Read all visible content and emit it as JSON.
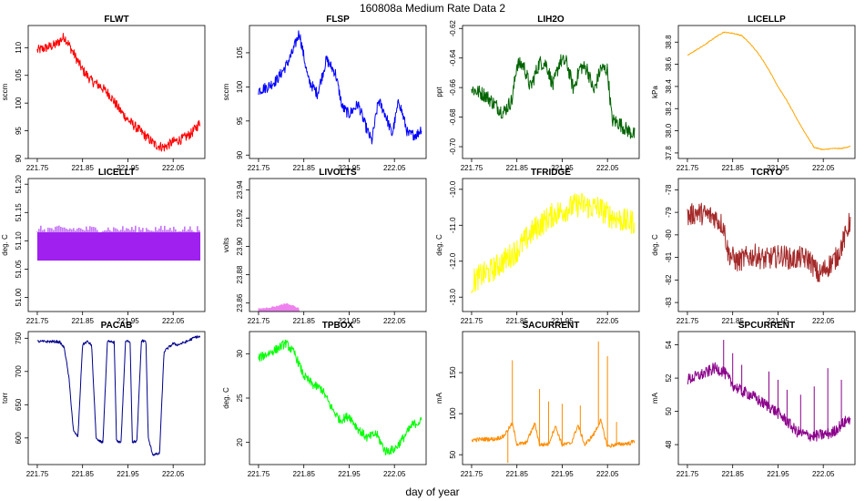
{
  "figure": {
    "title": "160808a   Medium Rate Data 2",
    "xlabel": "day of year"
  },
  "chart_data": [
    {
      "type": "line",
      "title": "FLWT",
      "ylabel": "sccm",
      "color": "#ff0000",
      "xlim": [
        221.73,
        222.12
      ],
      "ylim": [
        90,
        114
      ],
      "xticks": [
        221.75,
        221.85,
        221.95,
        222.05
      ],
      "xtick_labels": [
        "221.75",
        "221.85",
        "221.95",
        "222.05"
      ],
      "yticks": [
        90,
        95,
        100,
        105,
        110
      ],
      "ytick_labels": [
        "90",
        "95",
        "100",
        "105",
        "110"
      ],
      "x": [
        221.75,
        221.77,
        221.79,
        221.81,
        221.83,
        221.85,
        221.87,
        221.89,
        221.91,
        221.93,
        221.95,
        221.97,
        221.99,
        222.01,
        222.03,
        222.05,
        222.07,
        222.09,
        222.11
      ],
      "y": [
        109.5,
        110,
        110.5,
        112,
        109,
        106,
        104,
        103,
        101.5,
        99,
        97,
        95.5,
        94,
        92.5,
        92,
        93,
        93.5,
        94.5,
        96.5
      ],
      "noise": 0.9
    },
    {
      "type": "line",
      "title": "FLSP",
      "ylabel": "sccm",
      "color": "#0000ff",
      "xlim": [
        221.73,
        222.12
      ],
      "ylim": [
        89.5,
        109
      ],
      "xticks": [
        221.75,
        221.85,
        221.95,
        222.05
      ],
      "xtick_labels": [
        "221.75",
        "221.85",
        "221.95",
        "222.05"
      ],
      "yticks": [
        90,
        95,
        100,
        105
      ],
      "ytick_labels": [
        "90",
        "95",
        "100",
        "105"
      ],
      "x": [
        221.75,
        221.77,
        221.79,
        221.81,
        221.825,
        221.84,
        221.86,
        221.88,
        221.9,
        221.92,
        221.935,
        221.95,
        221.97,
        221.985,
        222.0,
        222.015,
        222.03,
        222.045,
        222.06,
        222.08,
        222.1,
        222.11
      ],
      "y": [
        99.5,
        100,
        101,
        103,
        105,
        108,
        101,
        99,
        104,
        102,
        97,
        96,
        97.5,
        94.5,
        92,
        98,
        96,
        93,
        98,
        93,
        93,
        94
      ],
      "noise": 0.8
    },
    {
      "type": "line",
      "title": "LIH2O",
      "ylabel": "ppt",
      "color": "#006400",
      "xlim": [
        221.73,
        222.12
      ],
      "ylim": [
        -0.708,
        -0.618
      ],
      "xticks": [
        221.75,
        221.85,
        221.95,
        222.05
      ],
      "xtick_labels": [
        "221.75",
        "221.85",
        "221.95",
        "222.05"
      ],
      "yticks": [
        -0.7,
        -0.68,
        -0.66,
        -0.64,
        -0.62
      ],
      "ytick_labels": [
        "-0.70",
        "-0.68",
        "-0.66",
        "-0.64",
        "-0.62"
      ],
      "x": [
        221.75,
        221.78,
        221.8,
        221.82,
        221.84,
        221.85,
        221.865,
        221.88,
        221.9,
        221.915,
        221.93,
        221.945,
        221.96,
        221.975,
        221.99,
        222.005,
        222.02,
        222.035,
        222.05,
        222.06,
        222.075,
        222.09,
        222.11
      ],
      "y": [
        -0.661,
        -0.665,
        -0.671,
        -0.677,
        -0.668,
        -0.644,
        -0.645,
        -0.66,
        -0.643,
        -0.644,
        -0.659,
        -0.642,
        -0.643,
        -0.661,
        -0.646,
        -0.647,
        -0.663,
        -0.647,
        -0.648,
        -0.682,
        -0.684,
        -0.688,
        -0.692
      ],
      "noise": 0.005
    },
    {
      "type": "line",
      "title": "LICELLP",
      "ylabel": "kPa",
      "color": "#ffa500",
      "xlim": [
        221.73,
        222.12
      ],
      "ylim": [
        37.75,
        38.95
      ],
      "xticks": [
        221.75,
        221.85,
        221.95,
        222.05
      ],
      "xtick_labels": [
        "221.75",
        "221.85",
        "221.95",
        "222.05"
      ],
      "yticks": [
        37.8,
        38.0,
        38.2,
        38.4,
        38.6,
        38.8
      ],
      "ytick_labels": [
        "37.8",
        "38.0",
        "38.2",
        "38.4",
        "38.6",
        "38.8"
      ],
      "x": [
        221.75,
        221.77,
        221.79,
        221.81,
        221.83,
        221.85,
        221.87,
        221.89,
        221.91,
        221.93,
        221.95,
        221.97,
        221.99,
        222.01,
        222.03,
        222.05,
        222.07,
        222.09,
        222.11
      ],
      "y": [
        38.68,
        38.73,
        38.78,
        38.84,
        38.89,
        38.88,
        38.86,
        38.78,
        38.68,
        38.55,
        38.4,
        38.27,
        38.12,
        37.98,
        37.85,
        37.83,
        37.84,
        37.84,
        37.86
      ],
      "noise": 0.004
    },
    {
      "type": "line",
      "title": "LICELLT",
      "ylabel": "deg. C",
      "color": "#a020f0",
      "xlim": [
        221.73,
        222.12
      ],
      "ylim": [
        50.975,
        51.21
      ],
      "xticks": [
        221.75,
        221.85,
        221.95,
        222.05
      ],
      "xtick_labels": [
        "221.75",
        "221.85",
        "221.95",
        "222.05"
      ],
      "yticks": [
        51.0,
        51.05,
        51.1,
        51.15,
        51.2
      ],
      "ytick_labels": [
        "51.00",
        "51.05",
        "51.10",
        "51.15",
        "51.20"
      ],
      "x": [
        221.75,
        222.11
      ],
      "y": [
        51.085,
        51.085
      ],
      "band": [
        51.065,
        51.115
      ]
    },
    {
      "type": "line",
      "title": "LIVOLTS",
      "ylabel": "volts",
      "color": "#ee82ee",
      "xlim": [
        221.73,
        222.12
      ],
      "ylim": [
        23.854,
        23.948
      ],
      "xticks": [
        221.75,
        221.85,
        221.95,
        222.05
      ],
      "xtick_labels": [
        "221.75",
        "221.85",
        "221.95",
        "222.05"
      ],
      "yticks": [
        23.86,
        23.88,
        23.9,
        23.92,
        23.94
      ],
      "ytick_labels": [
        "23.86",
        "23.88",
        "23.90",
        "23.92",
        "23.94"
      ],
      "x": [
        221.75,
        221.77,
        221.79,
        221.81,
        221.83,
        221.84
      ],
      "y": [
        23.855,
        23.856,
        23.857,
        23.859,
        23.857,
        23.855
      ],
      "band": [
        23.854,
        23.859
      ]
    },
    {
      "type": "line",
      "title": "TFRIDGE",
      "ylabel": "deg. C",
      "color": "#ffff00",
      "xlim": [
        221.73,
        222.12
      ],
      "ylim": [
        -13.4,
        -9.7
      ],
      "xticks": [
        221.75,
        221.85,
        221.95,
        222.05
      ],
      "xtick_labels": [
        "221.75",
        "221.85",
        "221.95",
        "222.05"
      ],
      "yticks": [
        -13,
        -12,
        -11,
        -10
      ],
      "ytick_labels": [
        "-13.0",
        "-12.0",
        "-11.0",
        "-10.0"
      ],
      "x": [
        221.75,
        221.77,
        221.79,
        221.81,
        221.83,
        221.85,
        221.87,
        221.89,
        221.91,
        221.93,
        221.95,
        221.97,
        221.99,
        222.01,
        222.03,
        222.05,
        222.07,
        222.09,
        222.11
      ],
      "y": [
        -12.6,
        -12.4,
        -12.3,
        -12.1,
        -11.9,
        -11.7,
        -11.4,
        -11.1,
        -10.9,
        -10.7,
        -10.6,
        -10.5,
        -10.4,
        -10.5,
        -10.5,
        -10.7,
        -10.8,
        -10.9,
        -10.9
      ],
      "noise": 0.35
    },
    {
      "type": "line",
      "title": "TCRYO",
      "ylabel": "deg. C",
      "color": "#a52a2a",
      "xlim": [
        221.73,
        222.12
      ],
      "ylim": [
        -83.4,
        -77.5
      ],
      "xticks": [
        221.75,
        221.85,
        221.95,
        222.05
      ],
      "xtick_labels": [
        "221.75",
        "221.85",
        "221.95",
        "222.05"
      ],
      "yticks": [
        -83,
        -82,
        -81,
        -80,
        -79,
        -78
      ],
      "ytick_labels": [
        "-83",
        "-82",
        "-81",
        "-80",
        "-79",
        "-78"
      ],
      "x": [
        221.75,
        221.77,
        221.79,
        221.81,
        221.83,
        221.84,
        221.86,
        221.88,
        221.9,
        221.92,
        221.94,
        221.96,
        221.98,
        222.0,
        222.02,
        222.04,
        222.06,
        222.08,
        222.1,
        222.11
      ],
      "y": [
        -79.2,
        -79.0,
        -79.1,
        -79.2,
        -79.6,
        -80.8,
        -81.2,
        -81.0,
        -80.9,
        -81.1,
        -81.0,
        -80.9,
        -81.1,
        -81.0,
        -81.1,
        -81.8,
        -81.4,
        -81.0,
        -80.0,
        -79.3
      ],
      "noise": 0.5
    },
    {
      "type": "line",
      "title": "PACAB",
      "ylabel": "torr",
      "color": "#00008b",
      "xlim": [
        221.73,
        222.12
      ],
      "ylim": [
        560,
        760
      ],
      "xticks": [
        221.75,
        221.85,
        221.95,
        222.05
      ],
      "xtick_labels": [
        "221.75",
        "221.85",
        "221.95",
        "222.05"
      ],
      "yticks": [
        600,
        650,
        700,
        750
      ],
      "ytick_labels": [
        "600",
        "650",
        "700",
        "750"
      ],
      "x": [
        221.75,
        221.79,
        221.8,
        221.81,
        221.82,
        221.83,
        221.84,
        221.85,
        221.86,
        221.87,
        221.88,
        221.885,
        221.895,
        221.905,
        221.92,
        221.925,
        221.935,
        221.945,
        221.955,
        221.96,
        221.97,
        221.98,
        221.99,
        221.995,
        222.005,
        222.02,
        222.03,
        222.05,
        222.06,
        222.08,
        222.1,
        222.11
      ],
      "y": [
        745,
        745,
        744,
        735,
        690,
        610,
        602,
        740,
        745,
        740,
        600,
        595,
        594,
        745,
        744,
        595,
        594,
        745,
        746,
        594,
        595,
        746,
        746,
        600,
        575,
        576,
        730,
        742,
        740,
        745,
        752,
        752
      ],
      "noise": 2
    },
    {
      "type": "line",
      "title": "TPBOX",
      "ylabel": "deg. C",
      "color": "#00ff00",
      "xlim": [
        221.73,
        222.12
      ],
      "ylim": [
        17.5,
        32.5
      ],
      "xticks": [
        221.75,
        221.85,
        221.95,
        222.05
      ],
      "xtick_labels": [
        "221.75",
        "221.85",
        "221.95",
        "222.05"
      ],
      "yticks": [
        20,
        25,
        30
      ],
      "ytick_labels": [
        "20",
        "25",
        "30"
      ],
      "x": [
        221.75,
        221.77,
        221.79,
        221.81,
        221.83,
        221.85,
        221.87,
        221.89,
        221.91,
        221.93,
        221.95,
        221.97,
        221.99,
        222.01,
        222.03,
        222.05,
        222.07,
        222.09,
        222.11
      ],
      "y": [
        29.5,
        30.0,
        30.5,
        31.2,
        30.0,
        27.5,
        26.5,
        26.0,
        24.0,
        22.5,
        23.0,
        21.5,
        20.5,
        21.0,
        19.0,
        19.2,
        20.5,
        22.0,
        22.4
      ],
      "noise": 0.5
    },
    {
      "type": "line",
      "title": "SACURRENT",
      "ylabel": "mA",
      "color": "#ff8c00",
      "xlim": [
        221.73,
        222.12
      ],
      "ylim": [
        38,
        200
      ],
      "xticks": [
        221.75,
        221.85,
        221.95,
        222.05
      ],
      "xtick_labels": [
        "221.75",
        "221.85",
        "221.95",
        "222.05"
      ],
      "yticks": [
        50,
        100,
        150
      ],
      "ytick_labels": [
        "50",
        "100",
        "150"
      ],
      "x": [
        221.75,
        221.78,
        221.8,
        221.82,
        221.84,
        221.85,
        221.87,
        221.89,
        221.9,
        221.92,
        221.935,
        221.95,
        221.97,
        221.985,
        222.0,
        222.02,
        222.035,
        222.05,
        222.065,
        222.08,
        222.1,
        222.11
      ],
      "y": [
        68,
        69,
        69,
        72,
        88,
        63,
        64,
        88,
        62,
        63,
        85,
        62,
        64,
        86,
        62,
        75,
        92,
        60,
        62,
        63,
        64,
        67
      ],
      "noise": 2.5,
      "spikes": [
        [
          221.84,
          165
        ],
        [
          221.83,
          40
        ],
        [
          221.9,
          130
        ],
        [
          221.92,
          115
        ],
        [
          221.95,
          112
        ],
        [
          221.99,
          110
        ],
        [
          222.03,
          188
        ],
        [
          222.05,
          170
        ],
        [
          222.07,
          90
        ]
      ]
    },
    {
      "type": "line",
      "title": "SPCURRENT",
      "ylabel": "mA",
      "color": "#8b008b",
      "xlim": [
        221.73,
        222.12
      ],
      "ylim": [
        46.8,
        54.8
      ],
      "xticks": [
        221.75,
        221.85,
        221.95,
        222.05
      ],
      "xtick_labels": [
        "221.75",
        "221.85",
        "221.95",
        "222.05"
      ],
      "yticks": [
        48,
        50,
        52,
        54
      ],
      "ytick_labels": [
        "48",
        "50",
        "52",
        "54"
      ],
      "x": [
        221.75,
        221.77,
        221.79,
        221.81,
        221.83,
        221.85,
        221.87,
        221.89,
        221.91,
        221.93,
        221.95,
        221.97,
        221.99,
        222.01,
        222.03,
        222.05,
        222.07,
        222.09,
        222.11
      ],
      "y": [
        51.9,
        52.1,
        52.3,
        52.6,
        52.4,
        51.6,
        51.2,
        51.0,
        50.6,
        50.3,
        49.9,
        49.4,
        48.8,
        48.6,
        48.5,
        48.6,
        48.7,
        49.2,
        49.6
      ],
      "noise": 0.35,
      "spikes": [
        [
          221.83,
          54.3
        ],
        [
          221.85,
          53.5
        ],
        [
          221.87,
          52.8
        ],
        [
          221.93,
          52.4
        ],
        [
          221.95,
          51.9
        ],
        [
          221.97,
          51.3
        ],
        [
          222.0,
          51.0
        ],
        [
          222.03,
          51.5
        ],
        [
          222.06,
          52.6
        ],
        [
          222.09,
          51.9
        ]
      ]
    }
  ]
}
